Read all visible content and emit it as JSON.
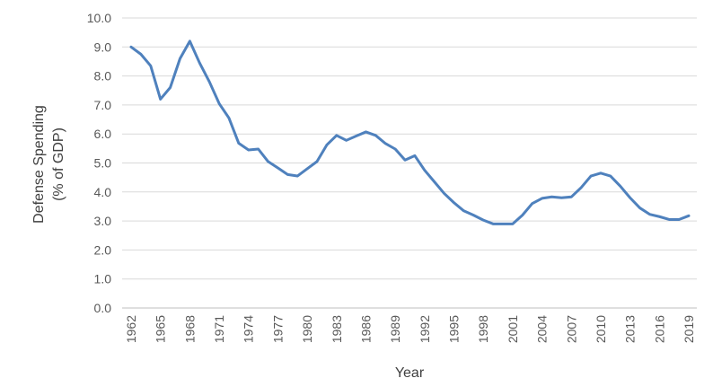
{
  "chart_data": {
    "type": "line",
    "title": "",
    "xlabel": "Year",
    "ylabel_lines": [
      "Defense Spending",
      "(% of GDP)"
    ],
    "ylim": [
      0,
      10
    ],
    "yticks": [
      "0.0",
      "1.0",
      "2.0",
      "3.0",
      "4.0",
      "5.0",
      "6.0",
      "7.0",
      "8.0",
      "9.0",
      "10.0"
    ],
    "xlim": [
      1962,
      2019
    ],
    "xticks": [
      "1962",
      "1965",
      "1968",
      "1971",
      "1974",
      "1977",
      "1980",
      "1983",
      "1986",
      "1989",
      "1992",
      "1995",
      "1998",
      "2001",
      "2004",
      "2007",
      "2010",
      "2013",
      "2016",
      "2019"
    ],
    "grid": true,
    "legend": "none",
    "line_color": "#4F81BD",
    "grid_color": "#D9D9D9",
    "x": [
      1962,
      1963,
      1964,
      1965,
      1966,
      1967,
      1968,
      1969,
      1970,
      1971,
      1972,
      1973,
      1974,
      1975,
      1976,
      1977,
      1978,
      1979,
      1980,
      1981,
      1982,
      1983,
      1984,
      1985,
      1986,
      1987,
      1988,
      1989,
      1990,
      1991,
      1992,
      1993,
      1994,
      1995,
      1996,
      1997,
      1998,
      1999,
      2000,
      2001,
      2002,
      2003,
      2004,
      2005,
      2006,
      2007,
      2008,
      2009,
      2010,
      2011,
      2012,
      2013,
      2014,
      2015,
      2016,
      2017,
      2018,
      2019
    ],
    "values": [
      9.0,
      8.75,
      8.35,
      7.2,
      7.6,
      8.6,
      9.2,
      8.45,
      7.8,
      7.05,
      6.55,
      5.68,
      5.45,
      5.48,
      5.05,
      4.83,
      4.6,
      4.55,
      4.8,
      5.05,
      5.62,
      5.95,
      5.78,
      5.93,
      6.07,
      5.95,
      5.67,
      5.48,
      5.1,
      5.25,
      4.75,
      4.35,
      3.95,
      3.63,
      3.35,
      3.2,
      3.03,
      2.9,
      2.9,
      2.9,
      3.2,
      3.6,
      3.78,
      3.83,
      3.8,
      3.83,
      4.15,
      4.55,
      4.65,
      4.55,
      4.2,
      3.8,
      3.45,
      3.23,
      3.15,
      3.05,
      3.05,
      3.18
    ]
  }
}
